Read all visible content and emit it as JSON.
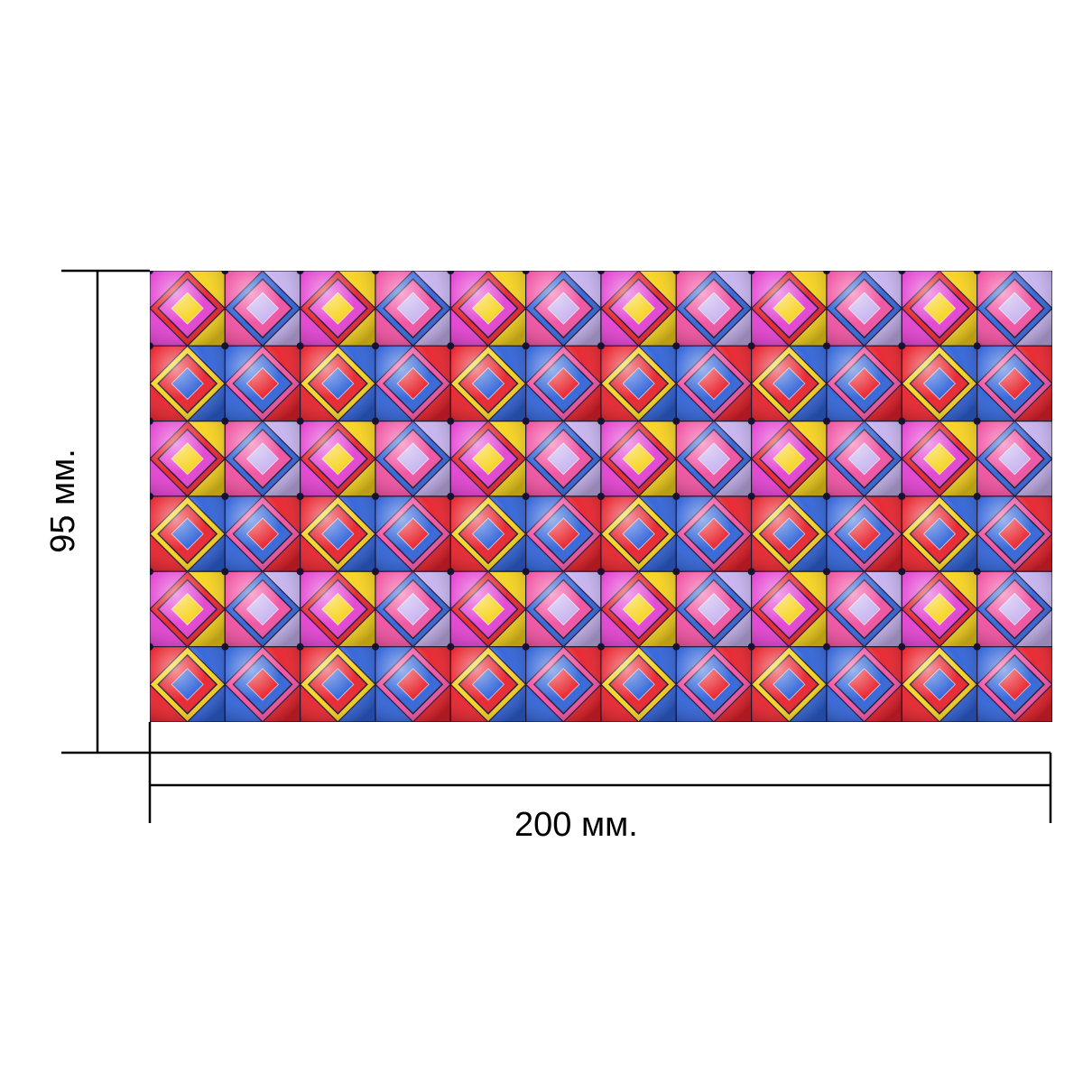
{
  "dimensions": {
    "width_label": "200 мм.",
    "height_label": "95 мм."
  },
  "pattern": {
    "palette": {
      "red": "#e8202a",
      "yellow": "#f7d21b",
      "blue": "#2f62d8",
      "magenta": "#e33fd0",
      "pink": "#f04fa0",
      "lavender": "#c6b2ef",
      "dark": "#1a1030"
    }
  }
}
